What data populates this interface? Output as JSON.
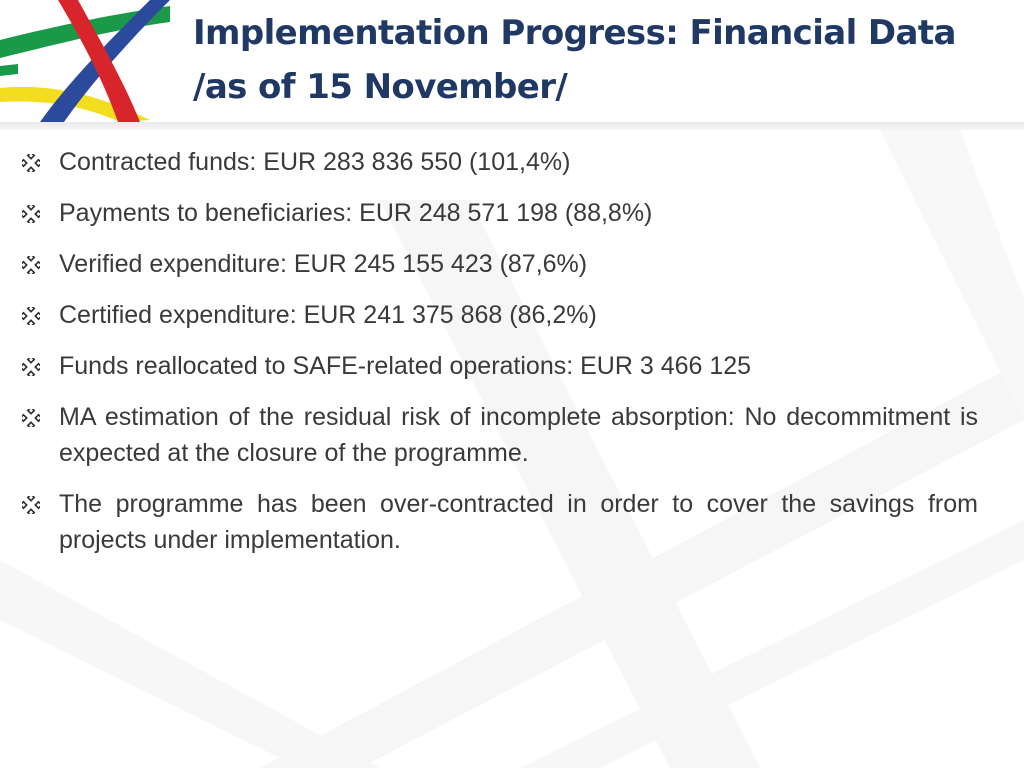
{
  "title": {
    "line1": "Implementation Progress: Financial Data",
    "line2": "/as of 15 November/"
  },
  "logo": {
    "colors": {
      "green": "#1a9a48",
      "red": "#d8252b",
      "blue": "#2c4a9c",
      "yellow": "#f3dd1f"
    }
  },
  "bullet_icon": "diamond-bullet-icon",
  "bullets": [
    "Contracted funds: EUR 283 836 550 (101,4%)",
    "Payments to beneficiaries: EUR 248 571 198 (88,8%)",
    "Verified expenditure: EUR 245 155 423 (87,6%)",
    "Certified expenditure: EUR 241 375 868 (86,2%)",
    "Funds reallocated to SAFE-related operations: EUR 3 466 125",
    "MA estimation of the residual risk of incomplete absorption: No decommitment is expected at the closure of the programme.",
    "The programme has been over-contracted in order to cover the savings from projects under implementation."
  ],
  "colors": {
    "title": "#1f3864",
    "text": "#3a3a3a",
    "bullet": "#2f2f2f"
  }
}
